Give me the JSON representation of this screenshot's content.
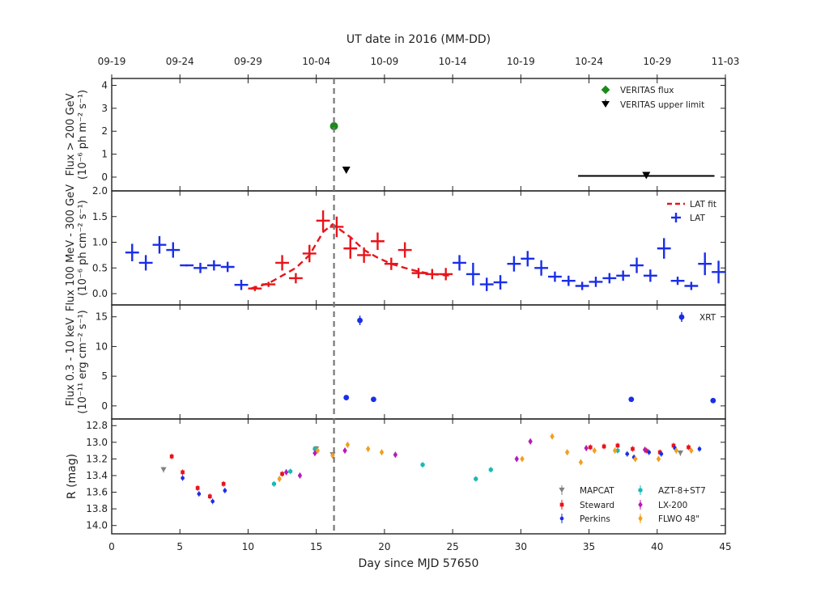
{
  "chart_data": {
    "type": "scatter",
    "top_axis": {
      "label": "UT date in 2016 (MM-DD)",
      "ticks": [
        {
          "day": 0,
          "label": "09-19"
        },
        {
          "day": 5,
          "label": "09-24"
        },
        {
          "day": 10,
          "label": "09-29"
        },
        {
          "day": 15,
          "label": "10-04"
        },
        {
          "day": 20,
          "label": "10-09"
        },
        {
          "day": 25,
          "label": "10-14"
        },
        {
          "day": 30,
          "label": "10-19"
        },
        {
          "day": 35,
          "label": "10-24"
        },
        {
          "day": 40,
          "label": "10-29"
        },
        {
          "day": 45,
          "label": "11-03"
        }
      ]
    },
    "x_axis": {
      "label": "Day since MJD 57650",
      "range": [
        0,
        45
      ],
      "ticks": [
        "0",
        "5",
        "10",
        "15",
        "20",
        "25",
        "30",
        "35",
        "40",
        "45"
      ]
    },
    "marker_day": 16.3,
    "panels": [
      {
        "id": "veritas",
        "ylabel_line1": "Flux > 200 GeV",
        "ylabel_line2": "(10⁻⁶ ph m⁻² s⁻¹)",
        "ylim": [
          -0.6,
          4.3
        ],
        "yticks": [
          "0",
          "1",
          "2",
          "3",
          "4"
        ],
        "legend": [
          {
            "label": "VERITAS flux",
            "color": "#1a8a1a"
          },
          {
            "label": "VERITAS upper limit",
            "color": "#000000"
          }
        ],
        "flux": [
          {
            "x": 16.3,
            "y": 2.22,
            "err": 0.1
          }
        ],
        "upper_limits": [
          {
            "x": 17.2,
            "y": 0.28
          },
          {
            "x": 39.2,
            "y": 0.05,
            "x_from": 34.2,
            "x_to": 44.2
          }
        ]
      },
      {
        "id": "lat",
        "ylabel_line1": "Flux 100 MeV - 300 GeV",
        "ylabel_line2": "(10⁻⁶ ph cm⁻² s⁻¹)",
        "ylim": [
          -0.22,
          2.0
        ],
        "yticks": [
          "0.0",
          "0.5",
          "1.0",
          "1.5",
          "2.0"
        ],
        "legend": [
          {
            "label": "LAT fit",
            "color": "#e8141a"
          },
          {
            "label": "LAT",
            "color": "#1a2ee8"
          }
        ],
        "lat_blue": [
          {
            "x": 1.5,
            "y": 0.8,
            "dx": 0.5,
            "dy": 0.17
          },
          {
            "x": 2.5,
            "y": 0.6,
            "dx": 0.5,
            "dy": 0.15
          },
          {
            "x": 3.5,
            "y": 0.95,
            "dx": 0.5,
            "dy": 0.17
          },
          {
            "x": 4.5,
            "y": 0.85,
            "dx": 0.5,
            "dy": 0.15
          },
          {
            "x": 5.5,
            "y": 0.55,
            "dx": 0.5,
            "dy": 0.02
          },
          {
            "x": 6.5,
            "y": 0.5,
            "dx": 0.5,
            "dy": 0.1
          },
          {
            "x": 7.5,
            "y": 0.55,
            "dx": 0.5,
            "dy": 0.1
          },
          {
            "x": 8.5,
            "y": 0.52,
            "dx": 0.5,
            "dy": 0.1
          },
          {
            "x": 9.5,
            "y": 0.17,
            "dx": 0.5,
            "dy": 0.1
          },
          {
            "x": 25.5,
            "y": 0.6,
            "dx": 0.5,
            "dy": 0.15
          },
          {
            "x": 26.5,
            "y": 0.38,
            "dx": 0.5,
            "dy": 0.22
          },
          {
            "x": 27.5,
            "y": 0.18,
            "dx": 0.5,
            "dy": 0.13
          },
          {
            "x": 28.5,
            "y": 0.22,
            "dx": 0.5,
            "dy": 0.14
          },
          {
            "x": 29.5,
            "y": 0.58,
            "dx": 0.5,
            "dy": 0.15
          },
          {
            "x": 30.5,
            "y": 0.68,
            "dx": 0.5,
            "dy": 0.15
          },
          {
            "x": 31.5,
            "y": 0.5,
            "dx": 0.5,
            "dy": 0.15
          },
          {
            "x": 32.5,
            "y": 0.33,
            "dx": 0.5,
            "dy": 0.1
          },
          {
            "x": 33.5,
            "y": 0.25,
            "dx": 0.5,
            "dy": 0.1
          },
          {
            "x": 34.5,
            "y": 0.15,
            "dx": 0.5,
            "dy": 0.08
          },
          {
            "x": 35.5,
            "y": 0.23,
            "dx": 0.5,
            "dy": 0.1
          },
          {
            "x": 36.5,
            "y": 0.3,
            "dx": 0.5,
            "dy": 0.1
          },
          {
            "x": 37.5,
            "y": 0.35,
            "dx": 0.5,
            "dy": 0.1
          },
          {
            "x": 38.5,
            "y": 0.55,
            "dx": 0.5,
            "dy": 0.15
          },
          {
            "x": 39.5,
            "y": 0.35,
            "dx": 0.5,
            "dy": 0.12
          },
          {
            "x": 40.5,
            "y": 0.88,
            "dx": 0.5,
            "dy": 0.2
          },
          {
            "x": 41.5,
            "y": 0.25,
            "dx": 0.5,
            "dy": 0.08
          },
          {
            "x": 42.5,
            "y": 0.15,
            "dx": 0.5,
            "dy": 0.08
          },
          {
            "x": 43.5,
            "y": 0.58,
            "dx": 0.5,
            "dy": 0.22
          },
          {
            "x": 44.5,
            "y": 0.42,
            "dx": 0.5,
            "dy": 0.22
          }
        ],
        "lat_red": [
          {
            "x": 10.5,
            "y": 0.1,
            "dx": 0.5,
            "dy": 0.05
          },
          {
            "x": 11.5,
            "y": 0.18,
            "dx": 0.5,
            "dy": 0.05
          },
          {
            "x": 12.5,
            "y": 0.6,
            "dx": 0.5,
            "dy": 0.15
          },
          {
            "x": 13.5,
            "y": 0.3,
            "dx": 0.5,
            "dy": 0.1
          },
          {
            "x": 14.5,
            "y": 0.78,
            "dx": 0.5,
            "dy": 0.17
          },
          {
            "x": 15.5,
            "y": 1.42,
            "dx": 0.5,
            "dy": 0.2
          },
          {
            "x": 16.5,
            "y": 1.3,
            "dx": 0.5,
            "dy": 0.2
          },
          {
            "x": 17.5,
            "y": 0.88,
            "dx": 0.5,
            "dy": 0.2
          },
          {
            "x": 18.5,
            "y": 0.75,
            "dx": 0.5,
            "dy": 0.15
          },
          {
            "x": 19.5,
            "y": 1.02,
            "dx": 0.5,
            "dy": 0.17
          },
          {
            "x": 20.5,
            "y": 0.58,
            "dx": 0.5,
            "dy": 0.12
          },
          {
            "x": 21.5,
            "y": 0.85,
            "dx": 0.5,
            "dy": 0.15
          },
          {
            "x": 22.5,
            "y": 0.4,
            "dx": 0.5,
            "dy": 0.1
          },
          {
            "x": 23.5,
            "y": 0.38,
            "dx": 0.5,
            "dy": 0.1
          },
          {
            "x": 24.5,
            "y": 0.38,
            "dx": 0.5,
            "dy": 0.12
          }
        ],
        "lat_fit": {
          "x": [
            10.2,
            11.5,
            12.5,
            13.5,
            14.5,
            15.5,
            16.2,
            17.5,
            18.5,
            19.5,
            20.5,
            21.5,
            22.5,
            23.5,
            24.8
          ],
          "y": [
            0.1,
            0.2,
            0.35,
            0.5,
            0.75,
            1.2,
            1.35,
            1.1,
            0.85,
            0.7,
            0.58,
            0.5,
            0.43,
            0.38,
            0.35
          ]
        }
      },
      {
        "id": "xrt",
        "ylabel_line1": "Flux 0.3 - 10 keV",
        "ylabel_line2": "(10⁻¹¹ erg cm⁻² s⁻¹)",
        "ylim": [
          -2.2,
          17
        ],
        "yticks": [
          "0",
          "5",
          "10",
          "15"
        ],
        "legend": [
          {
            "label": "XRT",
            "color": "#1a2ee8"
          }
        ],
        "xrt": [
          {
            "x": 17.2,
            "y": 1.4,
            "err": 0.2
          },
          {
            "x": 18.2,
            "y": 14.4,
            "err": 0.8
          },
          {
            "x": 19.2,
            "y": 1.1,
            "err": 0.2
          },
          {
            "x": 38.1,
            "y": 1.1,
            "err": 0.2
          },
          {
            "x": 44.1,
            "y": 0.9,
            "err": 0.2
          }
        ]
      },
      {
        "id": "optical",
        "ylabel": "R (mag)",
        "ylim": [
          12.72,
          14.1
        ],
        "inverted": true,
        "yticks": [
          "12.8",
          "13.0",
          "13.2",
          "13.4",
          "13.6",
          "13.8",
          "14.0"
        ],
        "legend": [
          {
            "label": "MAPCAT",
            "color": "#808080",
            "marker": "triangle"
          },
          {
            "label": "Steward",
            "color": "#e8141a",
            "marker": "square"
          },
          {
            "label": "Perkins",
            "color": "#1a2ee8",
            "marker": "dot"
          },
          {
            "label": "AZT-8+ST7",
            "color": "#1ab8b8",
            "marker": "hex"
          },
          {
            "label": "LX-200",
            "color": "#b81ab8",
            "marker": "diamond"
          },
          {
            "label": "FLWO 48\"",
            "color": "#f0a020",
            "marker": "diamond"
          }
        ],
        "mapcat": [
          {
            "x": 3.8,
            "y": 13.33
          },
          {
            "x": 15.0,
            "y": 13.08
          },
          {
            "x": 16.2,
            "y": 13.15
          },
          {
            "x": 41.7,
            "y": 13.13
          }
        ],
        "steward": [
          {
            "x": 4.4,
            "y": 13.17
          },
          {
            "x": 5.2,
            "y": 13.36
          },
          {
            "x": 6.3,
            "y": 13.55
          },
          {
            "x": 7.2,
            "y": 13.65
          },
          {
            "x": 8.2,
            "y": 13.5
          },
          {
            "x": 12.5,
            "y": 13.38
          },
          {
            "x": 35.1,
            "y": 13.06
          },
          {
            "x": 36.1,
            "y": 13.05
          },
          {
            "x": 37.1,
            "y": 13.04
          },
          {
            "x": 38.2,
            "y": 13.08
          },
          {
            "x": 39.2,
            "y": 13.1
          },
          {
            "x": 40.2,
            "y": 13.12
          },
          {
            "x": 41.2,
            "y": 13.04
          },
          {
            "x": 42.3,
            "y": 13.06
          }
        ],
        "perkins": [
          {
            "x": 5.2,
            "y": 13.43
          },
          {
            "x": 6.4,
            "y": 13.62
          },
          {
            "x": 7.4,
            "y": 13.71
          },
          {
            "x": 8.3,
            "y": 13.58
          },
          {
            "x": 37.8,
            "y": 13.14
          },
          {
            "x": 38.3,
            "y": 13.18
          },
          {
            "x": 39.4,
            "y": 13.12
          },
          {
            "x": 40.3,
            "y": 13.14
          },
          {
            "x": 41.3,
            "y": 13.07
          },
          {
            "x": 43.1,
            "y": 13.08
          }
        ],
        "azt": [
          {
            "x": 11.9,
            "y": 13.5
          },
          {
            "x": 13.1,
            "y": 13.35
          },
          {
            "x": 14.9,
            "y": 13.08
          },
          {
            "x": 22.8,
            "y": 13.27
          },
          {
            "x": 26.7,
            "y": 13.44
          },
          {
            "x": 27.8,
            "y": 13.33
          },
          {
            "x": 37.1,
            "y": 13.1
          }
        ],
        "lx200": [
          {
            "x": 12.8,
            "y": 13.36
          },
          {
            "x": 13.8,
            "y": 13.4
          },
          {
            "x": 14.9,
            "y": 13.13
          },
          {
            "x": 17.1,
            "y": 13.1
          },
          {
            "x": 20.8,
            "y": 13.15
          },
          {
            "x": 29.7,
            "y": 13.2
          },
          {
            "x": 30.7,
            "y": 12.99
          },
          {
            "x": 34.8,
            "y": 13.07
          },
          {
            "x": 39.1,
            "y": 13.09
          }
        ],
        "flwo": [
          {
            "x": 12.3,
            "y": 13.44
          },
          {
            "x": 15.1,
            "y": 13.1
          },
          {
            "x": 16.2,
            "y": 13.16
          },
          {
            "x": 17.3,
            "y": 13.03
          },
          {
            "x": 18.8,
            "y": 13.08
          },
          {
            "x": 19.8,
            "y": 13.12
          },
          {
            "x": 30.1,
            "y": 13.2
          },
          {
            "x": 32.3,
            "y": 12.93
          },
          {
            "x": 33.4,
            "y": 13.12
          },
          {
            "x": 34.4,
            "y": 13.24
          },
          {
            "x": 35.4,
            "y": 13.1
          },
          {
            "x": 36.9,
            "y": 13.1
          },
          {
            "x": 38.4,
            "y": 13.2
          },
          {
            "x": 40.1,
            "y": 13.2
          },
          {
            "x": 41.4,
            "y": 13.1
          },
          {
            "x": 42.5,
            "y": 13.1
          }
        ]
      }
    ]
  }
}
